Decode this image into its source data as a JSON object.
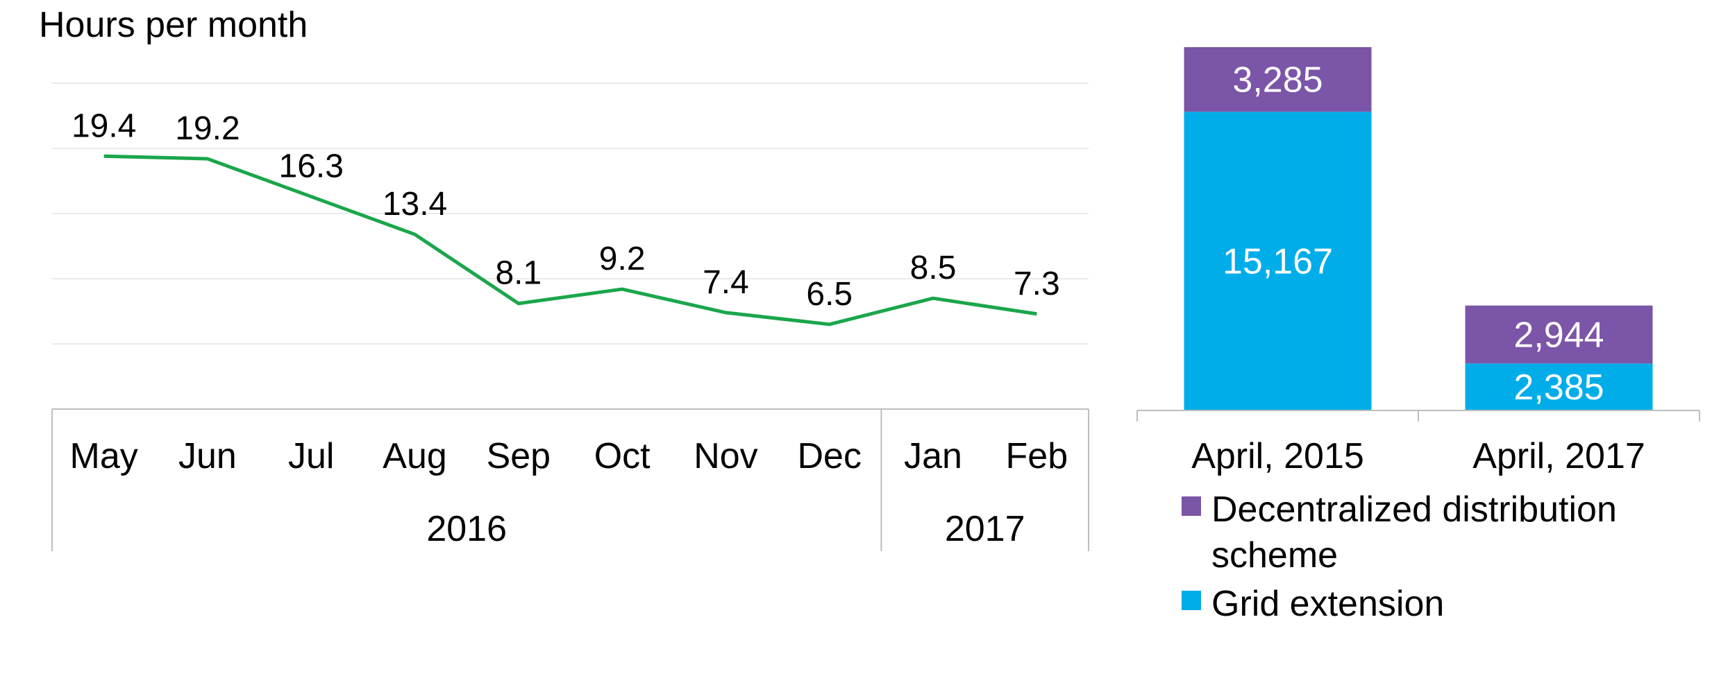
{
  "chart_data": [
    {
      "type": "line",
      "title": "",
      "ylabel": "Hours per month",
      "x": [
        "May",
        "Jun",
        "Jul",
        "Aug",
        "Sep",
        "Oct",
        "Nov",
        "Dec",
        "Jan",
        "Feb"
      ],
      "x_groups": [
        {
          "label": "2016",
          "count": 8
        },
        {
          "label": "2017",
          "count": 2
        }
      ],
      "series": [
        {
          "values": [
            19.4,
            19.2,
            16.3,
            13.4,
            8.1,
            9.2,
            7.4,
            6.5,
            8.5,
            7.3
          ],
          "color": "#1aa64a"
        }
      ],
      "ylim": [
        0,
        25
      ],
      "grid": true
    },
    {
      "type": "bar",
      "stacked": true,
      "categories": [
        "April, 2015",
        "April, 2017"
      ],
      "series": [
        {
          "name": "Grid extension",
          "values": [
            15167,
            2385
          ],
          "labels": [
            "15,167",
            "2,385"
          ],
          "color": "#00ade8"
        },
        {
          "name": "Decentralized distribution scheme",
          "values": [
            3285,
            2944
          ],
          "labels": [
            "3,285",
            "2,944"
          ],
          "color": "#7b55a7"
        }
      ],
      "legend_order": [
        1,
        0
      ],
      "legend_position": "bottom-left",
      "ylim": [
        0,
        18452
      ]
    }
  ]
}
